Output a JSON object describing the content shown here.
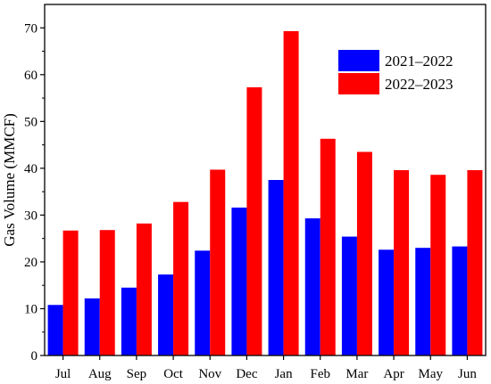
{
  "chart_data": {
    "type": "bar",
    "title": "",
    "xlabel": "",
    "ylabel": "Gas Volume (MMCF)",
    "ylim": [
      0,
      75
    ],
    "yticks": [
      0,
      10,
      20,
      30,
      40,
      50,
      60,
      70
    ],
    "grid": false,
    "legend_position": "top-right",
    "categories": [
      "Jul",
      "Aug",
      "Sep",
      "Oct",
      "Nov",
      "Dec",
      "Jan",
      "Feb",
      "Mar",
      "Apr",
      "May",
      "Jun"
    ],
    "series": [
      {
        "name": "2021–2022",
        "color": "#0000ff",
        "values": [
          10.8,
          12.2,
          14.5,
          17.3,
          22.4,
          31.6,
          37.5,
          29.3,
          25.4,
          22.6,
          23.0,
          23.3
        ]
      },
      {
        "name": "2022–2023",
        "color": "#ff0000",
        "values": [
          26.7,
          26.8,
          28.2,
          32.8,
          39.7,
          57.3,
          69.3,
          46.3,
          43.5,
          39.6,
          38.6,
          39.6
        ]
      }
    ]
  }
}
